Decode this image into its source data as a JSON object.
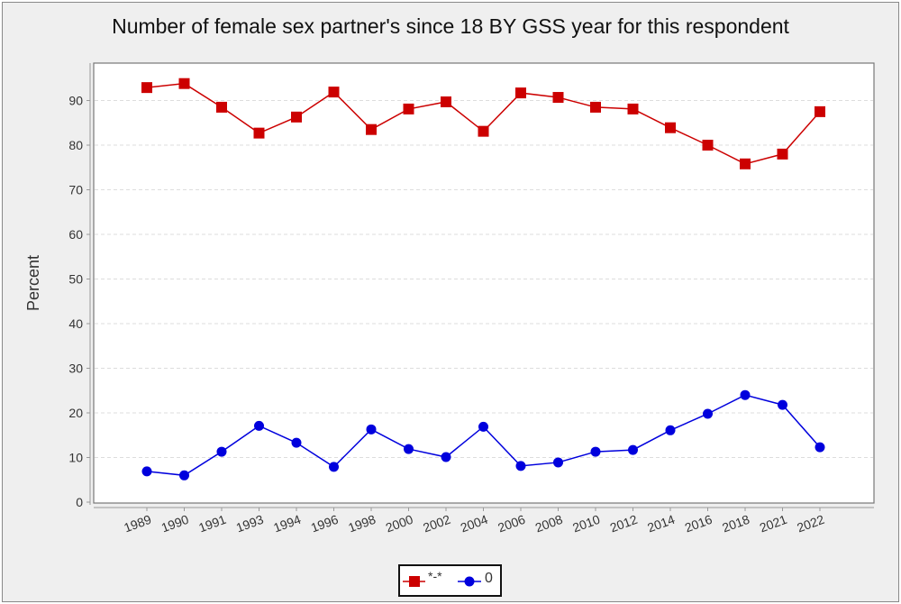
{
  "chart_data": {
    "type": "line",
    "title": "Number of female sex partner's since 18 BY GSS year for this respondent",
    "xlabel": "",
    "ylabel": "Percent",
    "ylim": [
      0,
      98
    ],
    "yticks": [
      0,
      10,
      20,
      30,
      40,
      50,
      60,
      70,
      80,
      90
    ],
    "grid": true,
    "legend": "bottom",
    "categories": [
      "1989",
      "1990",
      "1991",
      "1993",
      "1994",
      "1996",
      "1998",
      "2000",
      "2002",
      "2004",
      "2006",
      "2008",
      "2010",
      "2012",
      "2014",
      "2016",
      "2018",
      "2021",
      "2022"
    ],
    "series": [
      {
        "name": "*-*",
        "color": "#cc0000",
        "marker": "square",
        "values": [
          92.9,
          93.8,
          88.5,
          82.7,
          86.3,
          91.9,
          83.5,
          88.1,
          89.7,
          83.1,
          91.7,
          90.7,
          88.5,
          88.1,
          83.9,
          80.0,
          75.8,
          78.0,
          87.5
        ]
      },
      {
        "name": "0",
        "color": "#0000dd",
        "marker": "circle",
        "values": [
          6.9,
          6.0,
          11.3,
          17.1,
          13.3,
          7.9,
          16.3,
          11.9,
          10.1,
          16.9,
          8.1,
          8.9,
          11.3,
          11.7,
          16.1,
          19.8,
          24.0,
          21.8,
          12.3
        ]
      }
    ]
  }
}
